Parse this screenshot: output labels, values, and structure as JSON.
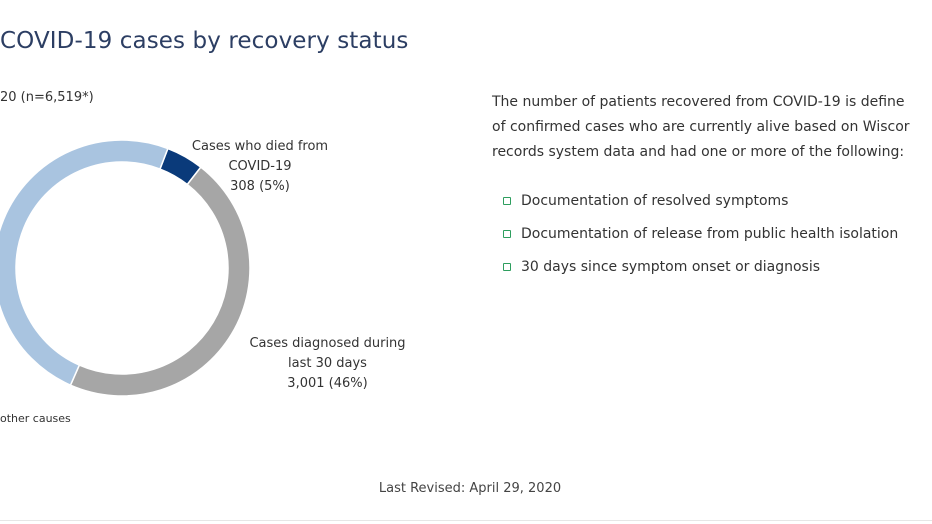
{
  "title": "COVID-19 cases by recovery status",
  "subtitle": "20 (n=6,519*)",
  "description": {
    "line1": "The number of patients recovered from COVID-19 is define",
    "line2": "of confirmed cases who are currently alive based on Wiscor",
    "line3": "records system data and had one or more of the following:"
  },
  "criteria": [
    "Documentation of resolved symptoms",
    "Documentation of release from public health isolation",
    "30 days since symptom onset or diagnosis"
  ],
  "labels": {
    "died_line1": "Cases who died from",
    "died_line2": "COVID-19",
    "died_value": "308 (5%)",
    "diag_line1": "Cases diagnosed during",
    "diag_line2": "last 30 days",
    "diag_value": "3,001 (46%)",
    "other": "other causes"
  },
  "footer": "Last Revised: April 29, 2020",
  "colors": {
    "recovered": "#a9c4e0",
    "died": "#0a3a7a",
    "diagnosed": "#a6a6a6",
    "bullet": "#2e9e5e"
  },
  "chart_data": {
    "type": "pie",
    "total": 6519,
    "slices": [
      {
        "category": "Cases who died from COVID-19",
        "value": 308,
        "percent": 5,
        "color": "#0a3a7a"
      },
      {
        "category": "Cases diagnosed during last 30 days",
        "value": 3001,
        "percent": 46,
        "color": "#a6a6a6"
      },
      {
        "category": "",
        "value": 3210,
        "percent": 49,
        "color": "#a9c4e0"
      }
    ]
  }
}
